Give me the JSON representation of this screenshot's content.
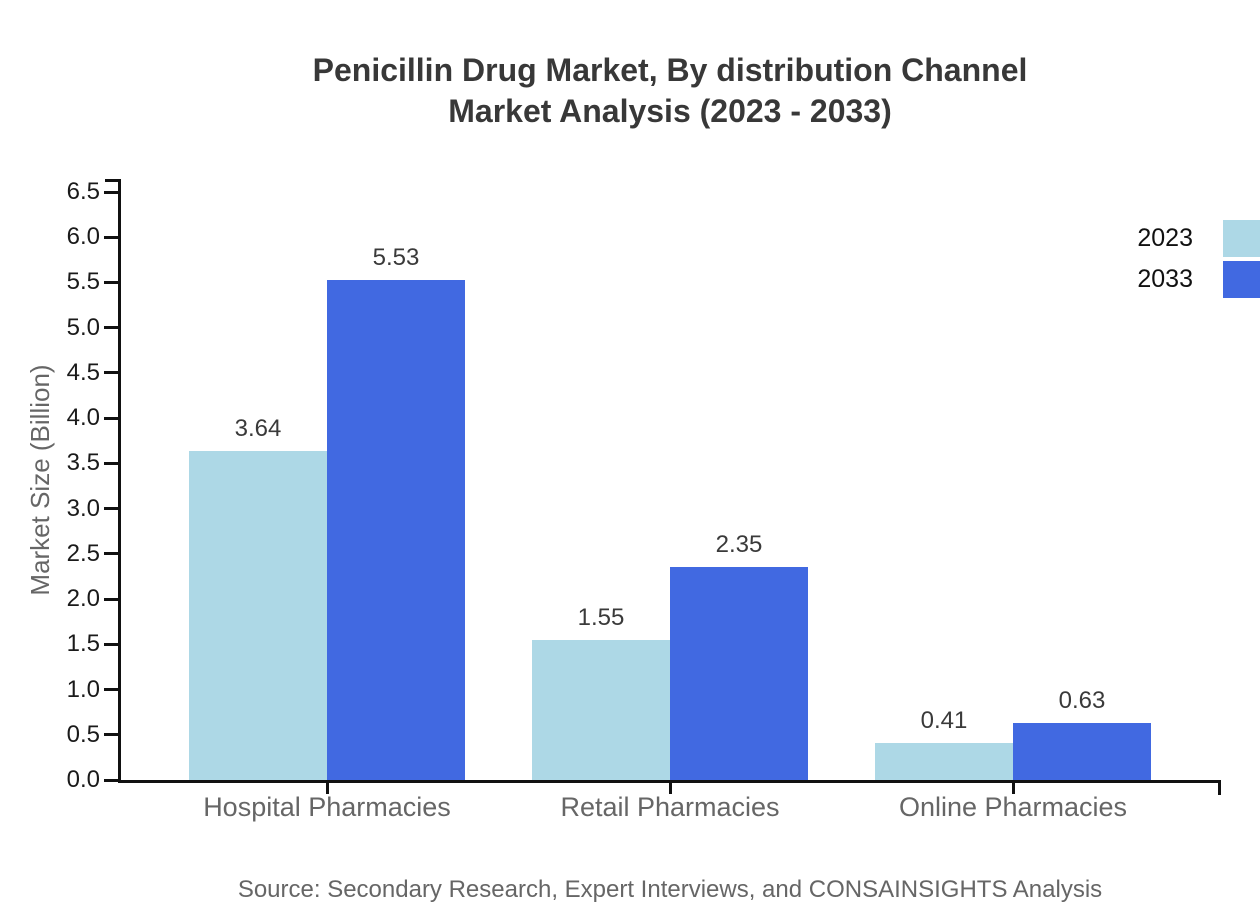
{
  "title": {
    "line1": "Penicillin Drug Market, By distribution Channel",
    "line2": "Market Analysis (2023 - 2033)"
  },
  "source": "Source: Secondary Research, Expert Interviews, and CONSAINSIGHTS Analysis",
  "colors": {
    "series_2023": "#ADD8E6",
    "series_2033": "#4169E1",
    "axis": "#111111",
    "title_text": "#383838",
    "muted_text": "#666666",
    "value_label_text": "#3a3a3a"
  },
  "chart_data": {
    "type": "bar",
    "title": "Penicillin Drug Market, By distribution Channel Market Analysis (2023 - 2033)",
    "categories": [
      "Hospital Pharmacies",
      "Retail Pharmacies",
      "Online Pharmacies"
    ],
    "series": [
      {
        "name": "2023",
        "color": "#ADD8E6",
        "values": [
          3.64,
          1.55,
          0.41
        ]
      },
      {
        "name": "2033",
        "color": "#4169E1",
        "values": [
          5.53,
          2.35,
          0.63
        ]
      }
    ],
    "xlabel": "",
    "ylabel": "Market Size (Billion)",
    "ylim": [
      0,
      6.5
    ],
    "ytick_step": 0.5,
    "grid": false,
    "value_labels": true,
    "value_label_format": "2dp",
    "legend_position": "top-right-outside",
    "source": "Source: Secondary Research, Expert Interviews, and CONSAINSIGHTS Analysis"
  }
}
